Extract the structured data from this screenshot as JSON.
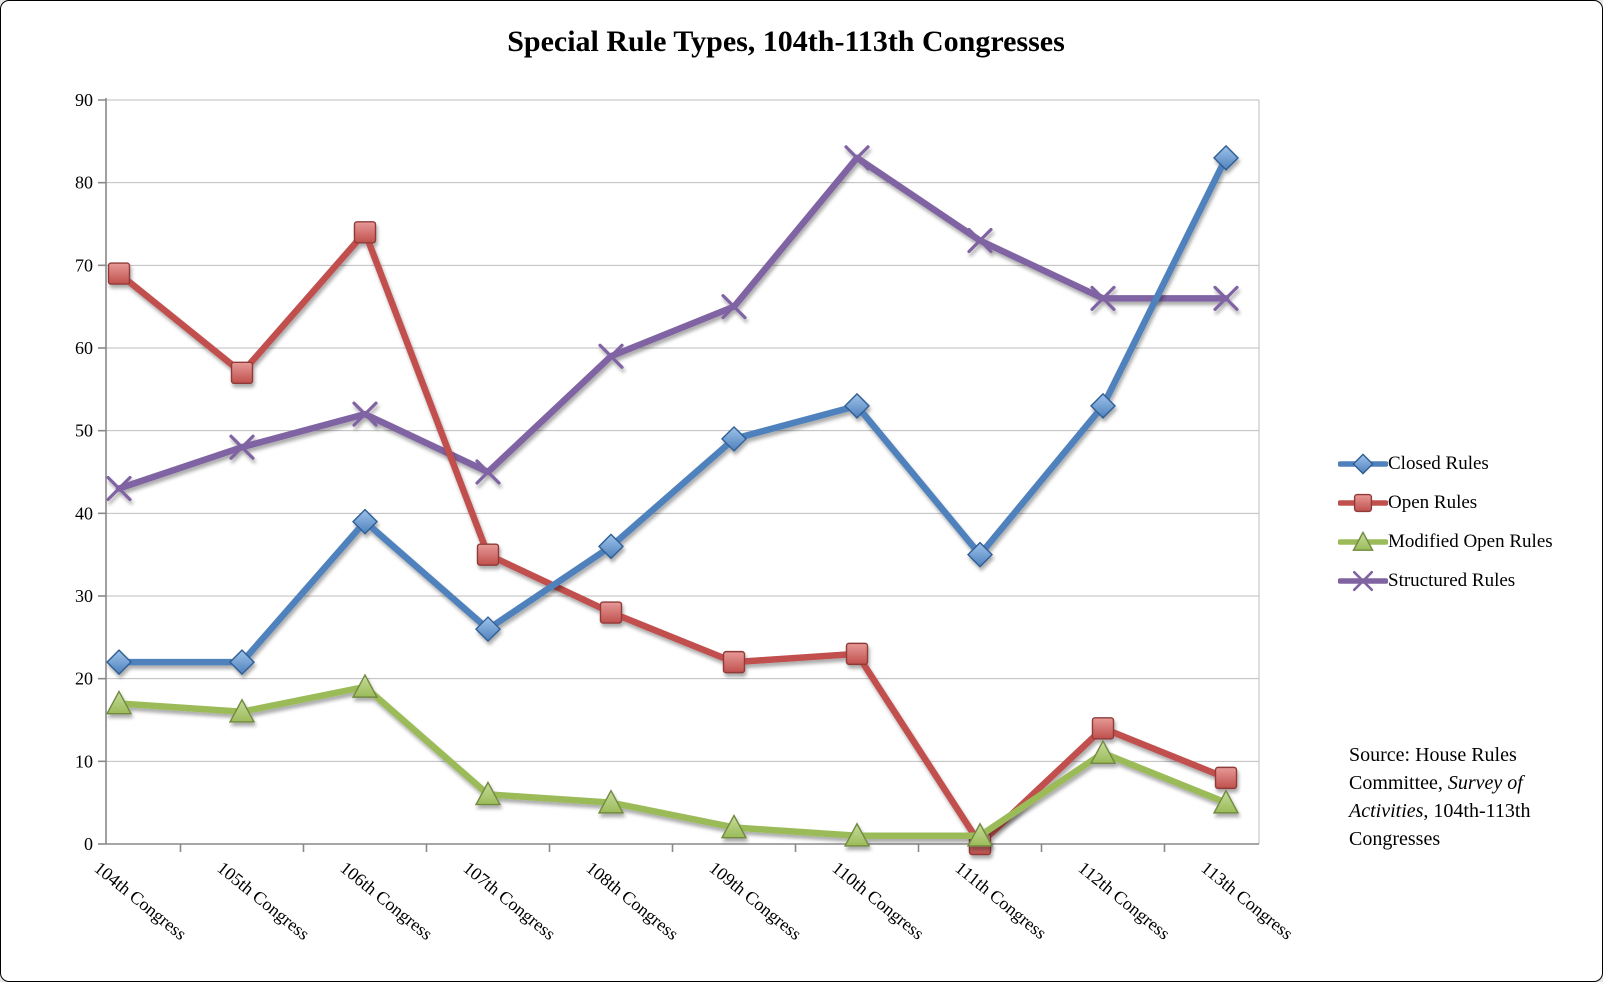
{
  "window": {
    "background": "#ffffff",
    "border_color": "#000000"
  },
  "title": "Special Rule Types, 104th-113th Congresses",
  "source_note": {
    "prefix": "Source: House Rules Committee, ",
    "italic": "Survey of Activities",
    "suffix": ", 104th-113th Congresses"
  },
  "chart_data": {
    "type": "line",
    "title": "Special Rule Types, 104th-113th Congresses",
    "categories": [
      "104th Congress",
      "105th Congress",
      "106th Congress",
      "107th Congress",
      "108th Congress",
      "109th Congress",
      "110th Congress",
      "111th Congress",
      "112th Congress",
      "113th Congress"
    ],
    "series": [
      {
        "name": "Closed Rules",
        "marker": "diamond",
        "color": "#4f81bd",
        "marker_light": "#9ec3ea",
        "marker_stroke": "#2f5d94",
        "values": [
          22,
          22,
          39,
          26,
          36,
          49,
          53,
          35,
          53,
          83
        ]
      },
      {
        "name": "Open Rules",
        "marker": "square",
        "color": "#c0504d",
        "marker_light": "#e79a98",
        "marker_stroke": "#8f3a38",
        "values": [
          69,
          57,
          74,
          35,
          28,
          22,
          23,
          0,
          14,
          8
        ]
      },
      {
        "name": "Modified Open Rules",
        "marker": "triangle",
        "color": "#9bbb59",
        "marker_light": "#c6dc9b",
        "marker_stroke": "#71893f",
        "values": [
          17,
          16,
          19,
          6,
          5,
          2,
          1,
          1,
          11,
          5
        ]
      },
      {
        "name": "Structured Rules",
        "marker": "x",
        "color": "#8064a2",
        "marker_light": "#a88fc9",
        "marker_stroke": "#8064a2",
        "values": [
          43,
          48,
          52,
          45,
          59,
          65,
          83,
          73,
          66,
          66
        ]
      }
    ],
    "ylim": [
      0,
      90
    ],
    "ytick_step": 10,
    "grid": true,
    "legend_position": "right",
    "draw_order": [
      3,
      1,
      2,
      0
    ],
    "axis_color": "#898989",
    "grid_color": "#bdbdbd"
  }
}
